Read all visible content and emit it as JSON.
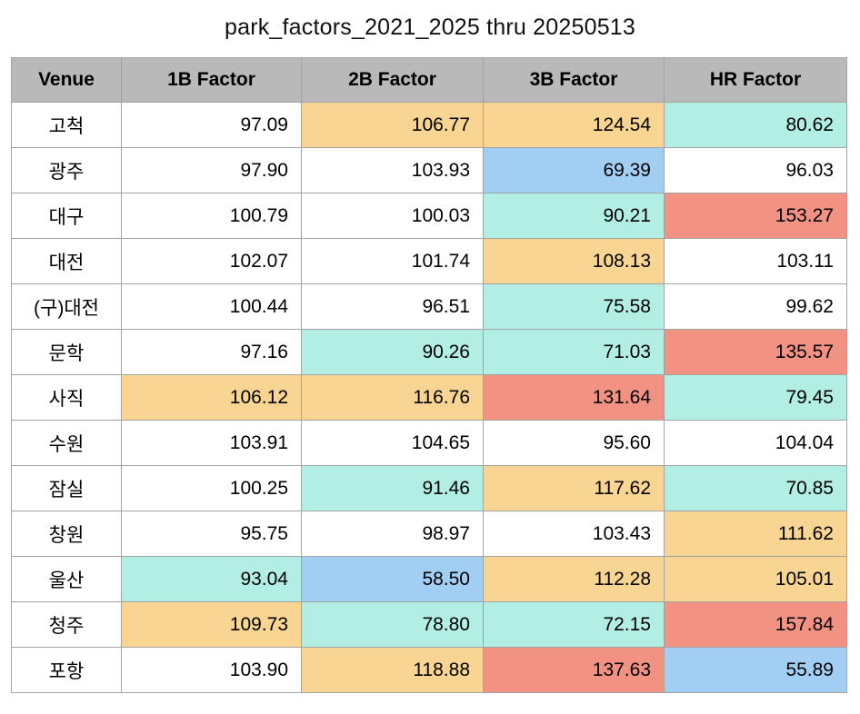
{
  "chart_data": {
    "type": "table",
    "title": "park_factors_2021_2025 thru 20250513",
    "columns": [
      "Venue",
      "1B Factor",
      "2B Factor",
      "3B Factor",
      "HR Factor"
    ],
    "rows": [
      {
        "venue": "고척",
        "cells": [
          {
            "value": "97.09",
            "tone": "neutral"
          },
          {
            "value": "106.77",
            "tone": "warm"
          },
          {
            "value": "124.54",
            "tone": "warm"
          },
          {
            "value": "80.62",
            "tone": "cool"
          }
        ]
      },
      {
        "venue": "광주",
        "cells": [
          {
            "value": "97.90",
            "tone": "neutral"
          },
          {
            "value": "103.93",
            "tone": "neutral"
          },
          {
            "value": "69.39",
            "tone": "cold"
          },
          {
            "value": "96.03",
            "tone": "neutral"
          }
        ]
      },
      {
        "venue": "대구",
        "cells": [
          {
            "value": "100.79",
            "tone": "neutral"
          },
          {
            "value": "100.03",
            "tone": "neutral"
          },
          {
            "value": "90.21",
            "tone": "cool"
          },
          {
            "value": "153.27",
            "tone": "hot"
          }
        ]
      },
      {
        "venue": "대전",
        "cells": [
          {
            "value": "102.07",
            "tone": "neutral"
          },
          {
            "value": "101.74",
            "tone": "neutral"
          },
          {
            "value": "108.13",
            "tone": "warm"
          },
          {
            "value": "103.11",
            "tone": "neutral"
          }
        ]
      },
      {
        "venue": "(구)대전",
        "cells": [
          {
            "value": "100.44",
            "tone": "neutral"
          },
          {
            "value": "96.51",
            "tone": "neutral"
          },
          {
            "value": "75.58",
            "tone": "cool"
          },
          {
            "value": "99.62",
            "tone": "neutral"
          }
        ]
      },
      {
        "venue": "문학",
        "cells": [
          {
            "value": "97.16",
            "tone": "neutral"
          },
          {
            "value": "90.26",
            "tone": "cool"
          },
          {
            "value": "71.03",
            "tone": "cool"
          },
          {
            "value": "135.57",
            "tone": "hot"
          }
        ]
      },
      {
        "venue": "사직",
        "cells": [
          {
            "value": "106.12",
            "tone": "warm"
          },
          {
            "value": "116.76",
            "tone": "warm"
          },
          {
            "value": "131.64",
            "tone": "hot"
          },
          {
            "value": "79.45",
            "tone": "cool"
          }
        ]
      },
      {
        "venue": "수원",
        "cells": [
          {
            "value": "103.91",
            "tone": "neutral"
          },
          {
            "value": "104.65",
            "tone": "neutral"
          },
          {
            "value": "95.60",
            "tone": "neutral"
          },
          {
            "value": "104.04",
            "tone": "neutral"
          }
        ]
      },
      {
        "venue": "잠실",
        "cells": [
          {
            "value": "100.25",
            "tone": "neutral"
          },
          {
            "value": "91.46",
            "tone": "cool"
          },
          {
            "value": "117.62",
            "tone": "warm"
          },
          {
            "value": "70.85",
            "tone": "cool"
          }
        ]
      },
      {
        "venue": "창원",
        "cells": [
          {
            "value": "95.75",
            "tone": "neutral"
          },
          {
            "value": "98.97",
            "tone": "neutral"
          },
          {
            "value": "103.43",
            "tone": "neutral"
          },
          {
            "value": "111.62",
            "tone": "warm"
          }
        ]
      },
      {
        "venue": "울산",
        "cells": [
          {
            "value": "93.04",
            "tone": "cool"
          },
          {
            "value": "58.50",
            "tone": "cold"
          },
          {
            "value": "112.28",
            "tone": "warm"
          },
          {
            "value": "105.01",
            "tone": "warm"
          }
        ]
      },
      {
        "venue": "청주",
        "cells": [
          {
            "value": "109.73",
            "tone": "warm"
          },
          {
            "value": "78.80",
            "tone": "cool"
          },
          {
            "value": "72.15",
            "tone": "cool"
          },
          {
            "value": "157.84",
            "tone": "hot"
          }
        ]
      },
      {
        "venue": "포항",
        "cells": [
          {
            "value": "103.90",
            "tone": "neutral"
          },
          {
            "value": "118.88",
            "tone": "warm"
          },
          {
            "value": "137.63",
            "tone": "hot"
          },
          {
            "value": "55.89",
            "tone": "cold"
          }
        ]
      }
    ]
  },
  "colors": {
    "headerBg": "#b9b9b9",
    "neutral": "#ffffff",
    "warm": "#f8d592",
    "hot": "#f19283",
    "cool": "#b2eee3",
    "cold": "#a2cef3",
    "border": "#a3a3a3",
    "text": "#000000"
  }
}
